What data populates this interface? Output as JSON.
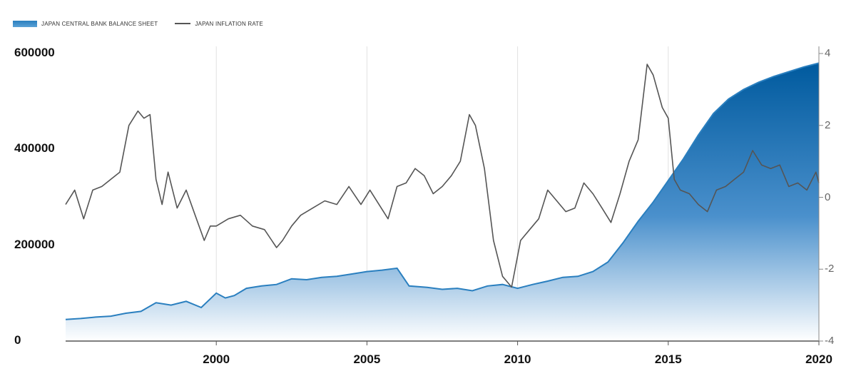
{
  "chart_data": {
    "type": "area+line",
    "legend": [
      {
        "label": "JAPAN CENTRAL BANK BALANCE SHEET",
        "color": "#2a7fbf"
      },
      {
        "label": "JAPAN INFLATION RATE",
        "color": "#555555"
      }
    ],
    "legend_placement": "top-left",
    "x_ticks": [
      "2000",
      "2005",
      "2010",
      "2015",
      "2020"
    ],
    "y_left_ticks": [
      "0",
      "200000",
      "400000",
      "600000"
    ],
    "y_right_ticks": [
      "-4",
      "-2",
      "0",
      "2",
      "4"
    ],
    "ylim_left": [
      0,
      600000
    ],
    "ylim_right": [
      -4,
      4
    ],
    "xlim": [
      1995.0,
      2020.0
    ],
    "series": [
      {
        "name": "JAPAN CENTRAL BANK BALANCE SHEET",
        "axis": "left",
        "type": "area",
        "color": "#1f6fae",
        "x": [
          1995.0,
          1995.5,
          1996.0,
          1996.5,
          1997.0,
          1997.5,
          1998.0,
          1998.5,
          1999.0,
          1999.5,
          2000.0,
          2000.3,
          2000.6,
          2001.0,
          2001.5,
          2002.0,
          2002.5,
          2003.0,
          2003.5,
          2004.0,
          2004.5,
          2005.0,
          2005.5,
          2006.0,
          2006.4,
          2007.0,
          2007.5,
          2008.0,
          2008.5,
          2009.0,
          2009.5,
          2010.0,
          2010.5,
          2011.0,
          2011.5,
          2012.0,
          2012.5,
          2013.0,
          2013.5,
          2014.0,
          2014.5,
          2015.0,
          2015.5,
          2016.0,
          2016.5,
          2017.0,
          2017.5,
          2018.0,
          2018.5,
          2019.0,
          2019.5,
          2020.0
        ],
        "values": [
          45000,
          47000,
          50000,
          52000,
          58000,
          62000,
          80000,
          75000,
          83000,
          70000,
          100000,
          90000,
          95000,
          110000,
          115000,
          118000,
          130000,
          128000,
          133000,
          135000,
          140000,
          145000,
          148000,
          152000,
          115000,
          112000,
          108000,
          110000,
          105000,
          115000,
          118000,
          110000,
          118000,
          125000,
          133000,
          135000,
          145000,
          165000,
          205000,
          250000,
          290000,
          335000,
          380000,
          430000,
          475000,
          505000,
          525000,
          540000,
          552000,
          562000,
          572000,
          580000
        ]
      },
      {
        "name": "JAPAN INFLATION RATE",
        "axis": "right",
        "type": "line",
        "color": "#555555",
        "x": [
          1995.0,
          1995.3,
          1995.6,
          1995.9,
          1996.2,
          1996.5,
          1996.8,
          1997.1,
          1997.4,
          1997.6,
          1997.8,
          1998.0,
          1998.2,
          1998.4,
          1998.7,
          1999.0,
          1999.3,
          1999.6,
          1999.8,
          2000.0,
          2000.4,
          2000.8,
          2001.2,
          2001.6,
          2002.0,
          2002.2,
          2002.5,
          2002.8,
          2003.2,
          2003.6,
          2004.0,
          2004.4,
          2004.8,
          2005.1,
          2005.4,
          2005.7,
          2006.0,
          2006.3,
          2006.6,
          2006.9,
          2007.2,
          2007.5,
          2007.8,
          2008.1,
          2008.4,
          2008.6,
          2008.9,
          2009.2,
          2009.5,
          2009.8,
          2010.1,
          2010.4,
          2010.7,
          2011.0,
          2011.3,
          2011.6,
          2011.9,
          2012.2,
          2012.5,
          2012.8,
          2013.1,
          2013.4,
          2013.7,
          2014.0,
          2014.3,
          2014.5,
          2014.8,
          2015.0,
          2015.2,
          2015.4,
          2015.7,
          2016.0,
          2016.3,
          2016.6,
          2016.9,
          2017.2,
          2017.5,
          2017.8,
          2018.1,
          2018.4,
          2018.7,
          2019.0,
          2019.3,
          2019.6,
          2019.9,
          2020.0
        ],
        "values": [
          -0.2,
          0.2,
          -0.6,
          0.2,
          0.3,
          0.5,
          0.7,
          2.0,
          2.4,
          2.2,
          2.3,
          0.5,
          -0.2,
          0.7,
          -0.3,
          0.2,
          -0.5,
          -1.2,
          -0.8,
          -0.8,
          -0.6,
          -0.5,
          -0.8,
          -0.9,
          -1.4,
          -1.2,
          -0.8,
          -0.5,
          -0.3,
          -0.1,
          -0.2,
          0.3,
          -0.2,
          0.2,
          -0.2,
          -0.6,
          0.3,
          0.4,
          0.8,
          0.6,
          0.1,
          0.3,
          0.6,
          1.0,
          2.3,
          2.0,
          0.8,
          -1.2,
          -2.2,
          -2.5,
          -1.2,
          -0.9,
          -0.6,
          0.2,
          -0.1,
          -0.4,
          -0.3,
          0.4,
          0.1,
          -0.3,
          -0.7,
          0.1,
          1.0,
          1.6,
          3.7,
          3.4,
          2.5,
          2.2,
          0.5,
          0.2,
          0.1,
          -0.2,
          -0.4,
          0.2,
          0.3,
          0.5,
          0.7,
          1.3,
          0.9,
          0.8,
          0.9,
          0.3,
          0.4,
          0.2,
          0.7,
          0.4
        ]
      }
    ]
  }
}
